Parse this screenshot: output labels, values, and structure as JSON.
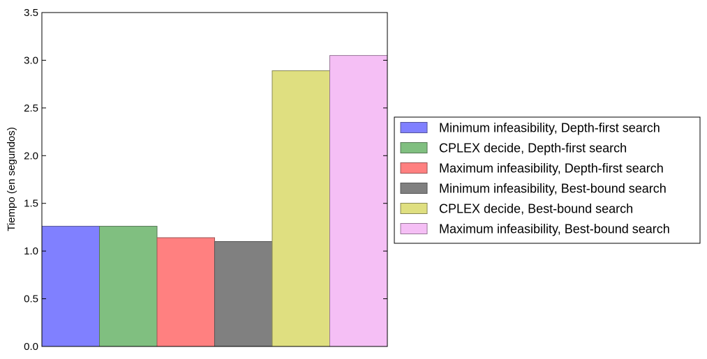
{
  "chart_data": {
    "type": "bar",
    "ylabel": "Tiempo (en segundos)",
    "ylim": [
      0,
      3.5
    ],
    "yticks": [
      "0.0",
      "0.5",
      "1.0",
      "1.5",
      "2.0",
      "2.5",
      "3.0",
      "3.5"
    ],
    "grid": false,
    "legend_position": "right",
    "series": [
      {
        "name": "Minimum infeasibility, Depth-first search",
        "value": 1.26,
        "color": "#8080ff",
        "edge": "#555599"
      },
      {
        "name": "CPLEX decide, Depth-first search",
        "value": 1.26,
        "color": "#80bf80",
        "edge": "#557755"
      },
      {
        "name": "Maximum infeasibility, Depth-first search",
        "value": 1.14,
        "color": "#ff8080",
        "edge": "#995555"
      },
      {
        "name": "Minimum infeasibility, Best-bound search",
        "value": 1.1,
        "color": "#808080",
        "edge": "#555555"
      },
      {
        "name": "CPLEX decide, Best-bound search",
        "value": 2.89,
        "color": "#dfdf80",
        "edge": "#888855"
      },
      {
        "name": "Maximum infeasibility, Best-bound search",
        "value": 3.05,
        "color": "#f5bff5",
        "edge": "#997799"
      }
    ]
  }
}
